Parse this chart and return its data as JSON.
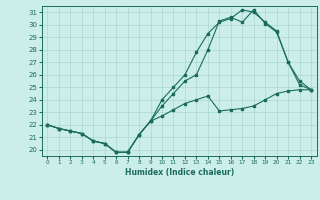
{
  "title": "",
  "xlabel": "Humidex (Indice chaleur)",
  "ylabel": "",
  "bg_color": "#cceee8",
  "line_color": "#1a6b5e",
  "grid_color": "#aad8d0",
  "xlim": [
    -0.5,
    23.5
  ],
  "ylim": [
    19.5,
    31.5
  ],
  "yticks": [
    20,
    21,
    22,
    23,
    24,
    25,
    26,
    27,
    28,
    29,
    30,
    31
  ],
  "xticks": [
    0,
    1,
    2,
    3,
    4,
    5,
    6,
    7,
    8,
    9,
    10,
    11,
    12,
    13,
    14,
    15,
    16,
    17,
    18,
    19,
    20,
    21,
    22,
    23
  ],
  "series1": {
    "x": [
      0,
      1,
      2,
      3,
      4,
      5,
      6,
      7,
      8,
      9,
      10,
      11,
      12,
      13,
      14,
      15,
      16,
      17,
      18,
      19,
      20,
      21,
      22,
      23
    ],
    "y": [
      22,
      21.7,
      21.5,
      21.3,
      20.7,
      20.5,
      19.8,
      19.8,
      21.2,
      22.3,
      22.7,
      23.2,
      23.7,
      24.0,
      24.3,
      23.1,
      23.2,
      23.3,
      23.5,
      24.0,
      24.5,
      24.7,
      24.8,
      24.8
    ]
  },
  "series2": {
    "x": [
      0,
      1,
      2,
      3,
      4,
      5,
      6,
      7,
      8,
      9,
      10,
      11,
      12,
      13,
      14,
      15,
      16,
      17,
      18,
      19,
      20,
      21,
      22,
      23
    ],
    "y": [
      22,
      21.7,
      21.5,
      21.3,
      20.7,
      20.5,
      19.8,
      19.8,
      21.2,
      22.3,
      24.0,
      25.0,
      26.0,
      27.8,
      29.3,
      30.2,
      30.5,
      31.2,
      31.0,
      30.2,
      29.5,
      27.0,
      25.5,
      24.8
    ]
  },
  "series3": {
    "x": [
      0,
      1,
      2,
      3,
      4,
      5,
      6,
      7,
      8,
      9,
      10,
      11,
      12,
      13,
      14,
      15,
      16,
      17,
      18,
      19,
      20,
      21,
      22,
      23
    ],
    "y": [
      22,
      21.7,
      21.5,
      21.3,
      20.7,
      20.5,
      19.8,
      19.8,
      21.2,
      22.3,
      23.5,
      24.5,
      25.5,
      26.0,
      28.0,
      30.3,
      30.6,
      30.2,
      31.2,
      30.1,
      29.4,
      27.0,
      25.2,
      24.8
    ]
  }
}
